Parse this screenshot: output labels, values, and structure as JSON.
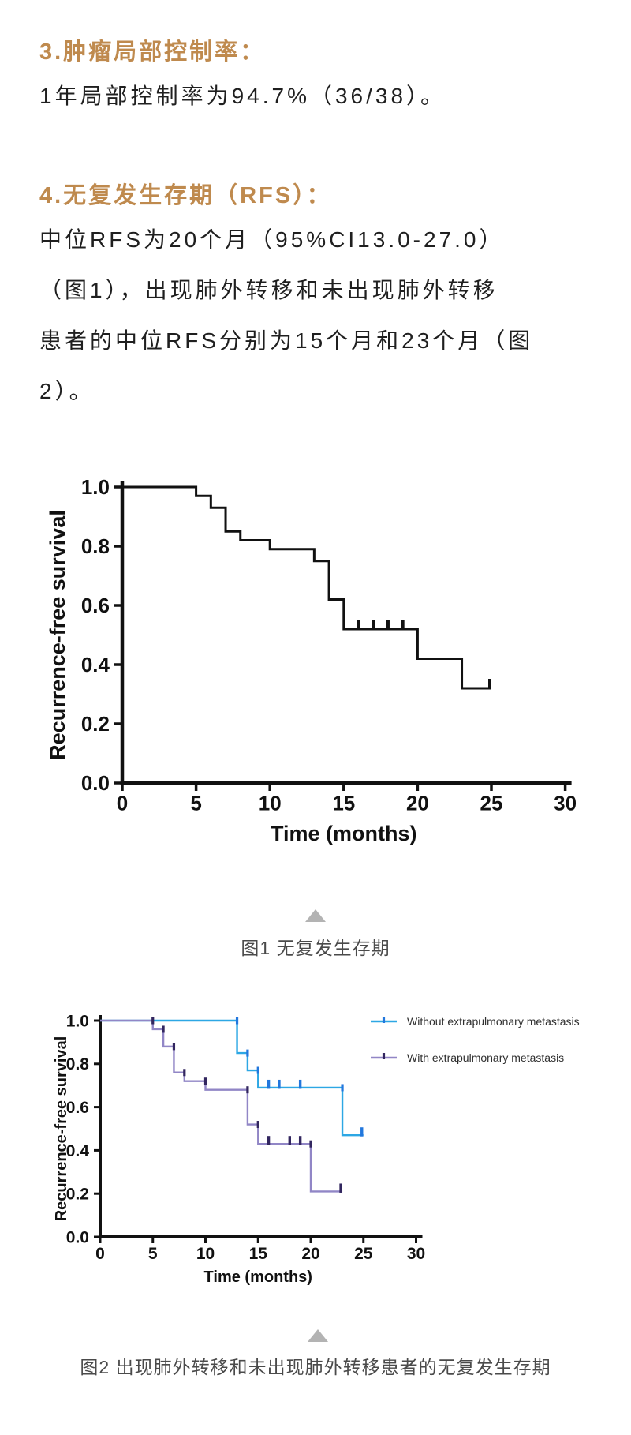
{
  "colors": {
    "background": "#ffffff",
    "accent": "#bf8a4e",
    "body": "#1f1f1f",
    "caption": "#4a4a4a",
    "triangle": "#b3b3b3",
    "chart_black": "#111111",
    "blue": "#2da7e4",
    "blue_marker": "#2277dd",
    "purple": "#9186c6",
    "purple_marker": "#32265f"
  },
  "sections": {
    "s3_heading": "3.肿瘤局部控制率：",
    "s3_body": "1年局部控制率为94.7%（36/38）。",
    "s4_heading": "4.无复发生存期（RFS）：",
    "s4_lines": [
      "中位RFS为20个月（95%CI13.0-27.0）",
      "（图1），出现肺外转移和未出现肺外转移",
      "患者的中位RFS分别为15个月和23个月（图",
      "2）。"
    ]
  },
  "figure1": {
    "caption": "图1 无复发生存期"
  },
  "figure2": {
    "caption": "图2 出现肺外转移和未出现肺外转移患者的无复发生存期"
  },
  "chart_data": [
    {
      "type": "line",
      "subtype": "kaplan-meier-step",
      "title": "",
      "xlabel": "Time (months)",
      "ylabel": "Recurrence-free survival",
      "xlim": [
        0,
        30
      ],
      "ylim": [
        0.0,
        1.0
      ],
      "grid": false,
      "xticks": [
        "0",
        "5",
        "10",
        "15",
        "20",
        "25",
        "30"
      ],
      "yticks": [
        "0.0",
        "0.2",
        "0.4",
        "0.6",
        "0.8",
        "1.0"
      ],
      "series": [
        {
          "name": "",
          "color": "#111111",
          "marker_color": "#111111",
          "show_event_markers": false,
          "start": [
            0,
            1.0
          ],
          "drops": [
            [
              5,
              0.97
            ],
            [
              6,
              0.93
            ],
            [
              7,
              0.85
            ],
            [
              8,
              0.82
            ],
            [
              10,
              0.79
            ],
            [
              13,
              0.75
            ],
            [
              14,
              0.62
            ],
            [
              15,
              0.52
            ],
            [
              20,
              0.42
            ],
            [
              23,
              0.32
            ]
          ],
          "end_month": 25,
          "censors": [
            [
              16,
              0.52
            ],
            [
              17,
              0.52
            ],
            [
              18,
              0.52
            ],
            [
              19,
              0.52
            ],
            [
              25,
              0.32
            ]
          ]
        }
      ],
      "legend": []
    },
    {
      "type": "line",
      "subtype": "kaplan-meier-step",
      "title": "",
      "xlabel": "Time (months)",
      "ylabel": "Recurrence-free survival",
      "xlim": [
        0,
        30
      ],
      "ylim": [
        0.0,
        1.0
      ],
      "grid": false,
      "legend_position": "top-right",
      "xticks": [
        "0",
        "5",
        "10",
        "15",
        "20",
        "25",
        "30"
      ],
      "yticks": [
        "0.0",
        "0.2",
        "0.4",
        "0.6",
        "0.8",
        "1.0"
      ],
      "series": [
        {
          "name": "Without extrapulmonary metastasis",
          "color": "#2da7e4",
          "marker_color": "#2277dd",
          "show_event_markers": true,
          "start": [
            0,
            1.0
          ],
          "drops": [
            [
              13,
              0.85
            ],
            [
              14,
              0.77
            ],
            [
              15,
              0.69
            ],
            [
              23,
              0.47
            ]
          ],
          "end_month": 25,
          "censors": [
            [
              16,
              0.69
            ],
            [
              17,
              0.69
            ],
            [
              19,
              0.69
            ],
            [
              25,
              0.47
            ]
          ]
        },
        {
          "name": "With extrapulmonary metastasis",
          "color": "#9186c6",
          "marker_color": "#32265f",
          "show_event_markers": true,
          "start": [
            0,
            1.0
          ],
          "drops": [
            [
              5,
              0.96
            ],
            [
              6,
              0.88
            ],
            [
              7,
              0.76
            ],
            [
              8,
              0.72
            ],
            [
              10,
              0.68
            ],
            [
              14,
              0.52
            ],
            [
              15,
              0.43
            ],
            [
              20,
              0.21
            ]
          ],
          "end_month": 23,
          "censors": [
            [
              16,
              0.43
            ],
            [
              18,
              0.43
            ],
            [
              19,
              0.43
            ],
            [
              23,
              0.21
            ]
          ]
        }
      ]
    }
  ]
}
